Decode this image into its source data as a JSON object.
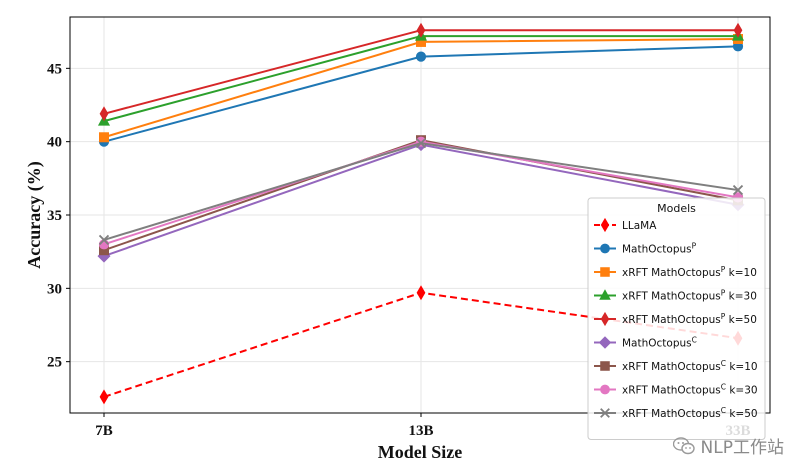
{
  "chart_data": {
    "type": "line",
    "title": "",
    "xlabel": "Model Size",
    "ylabel": "Accuracy (%)",
    "categories": [
      "7B",
      "13B",
      "33B"
    ],
    "ylim": [
      21.5,
      48.5
    ],
    "yticks": [
      25,
      30,
      35,
      40,
      45
    ],
    "grid": true,
    "legend": {
      "title": "Models",
      "placement": "lower-right"
    },
    "series": [
      {
        "name": "LLaMA",
        "sup": "",
        "suffix": "",
        "values": [
          22.6,
          29.7,
          26.6
        ],
        "color": "#ff0000",
        "marker": "thin_diamond",
        "dashed": true
      },
      {
        "name": "MathOctopus",
        "sup": "P",
        "suffix": "",
        "values": [
          40.0,
          45.8,
          46.5
        ],
        "color": "#1f77b4",
        "marker": "circle",
        "dashed": false
      },
      {
        "name": "xRFT MathOctopus",
        "sup": "P",
        "suffix": " k=10",
        "values": [
          40.3,
          46.8,
          47.0
        ],
        "color": "#ff7f0e",
        "marker": "square",
        "dashed": false
      },
      {
        "name": "xRFT MathOctopus",
        "sup": "P",
        "suffix": " k=30",
        "values": [
          41.4,
          47.2,
          47.2
        ],
        "color": "#2ca02c",
        "marker": "triangle",
        "dashed": false
      },
      {
        "name": "xRFT MathOctopus",
        "sup": "P",
        "suffix": " k=50",
        "values": [
          41.9,
          47.6,
          47.6
        ],
        "color": "#d62728",
        "marker": "thin_diamond",
        "dashed": false
      },
      {
        "name": "MathOctopus",
        "sup": "C",
        "suffix": "",
        "values": [
          32.2,
          39.8,
          35.7
        ],
        "color": "#9467bd",
        "marker": "diamond",
        "dashed": false
      },
      {
        "name": "xRFT MathOctopus",
        "sup": "C",
        "suffix": " k=10",
        "values": [
          32.6,
          40.1,
          36.0
        ],
        "color": "#8c564b",
        "marker": "square",
        "dashed": false
      },
      {
        "name": "xRFT MathOctopus",
        "sup": "C",
        "suffix": " k=30",
        "values": [
          33.0,
          40.0,
          36.2
        ],
        "color": "#e377c2",
        "marker": "circle",
        "dashed": false
      },
      {
        "name": "xRFT MathOctopus",
        "sup": "C",
        "suffix": " k=50",
        "values": [
          33.3,
          39.9,
          36.7
        ],
        "color": "#7f7f7f",
        "marker": "x",
        "dashed": false
      }
    ]
  },
  "watermark": {
    "text": "NLP工作站",
    "icon": "wechat-icon"
  }
}
